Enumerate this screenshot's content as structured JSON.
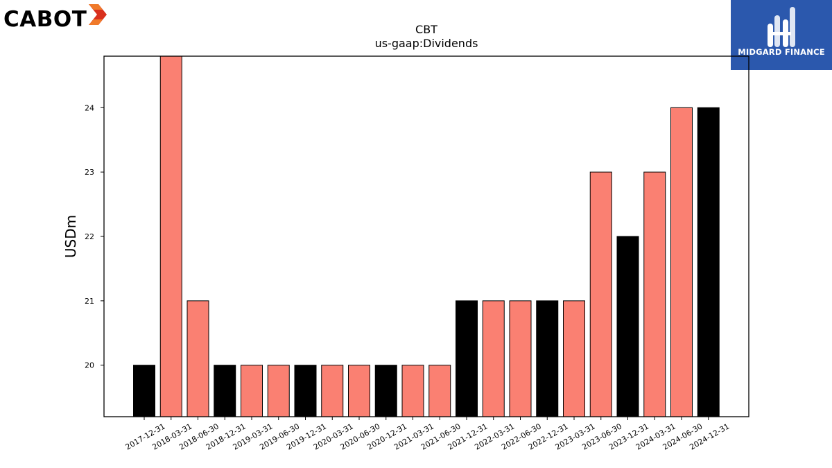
{
  "brand": {
    "name": "CABOT",
    "icon": "cabot-mark-icon",
    "colors": {
      "mark_dark": "#d9301e",
      "mark_light": "#f07a2a"
    }
  },
  "partner": {
    "name": "MIDGARD FINANCE",
    "icon": "midgard-mark-icon",
    "colors": {
      "background": "#2b58ad",
      "text": "#ffffff"
    }
  },
  "chart_data": {
    "type": "bar",
    "title": "CBT",
    "subtitle": "us-gaap:Dividends",
    "xlabel": "",
    "ylabel": "USDm",
    "ylim": [
      19.2,
      24.8
    ],
    "yticks": [
      20,
      21,
      22,
      23,
      24
    ],
    "grid": false,
    "legend": "none",
    "categories": [
      "2017-12-31",
      "2018-03-31",
      "2018-06-30",
      "2018-12-31",
      "2019-03-31",
      "2019-06-30",
      "2019-12-31",
      "2020-03-31",
      "2020-06-30",
      "2020-12-31",
      "2021-03-31",
      "2021-06-30",
      "2021-12-31",
      "2022-03-31",
      "2022-06-30",
      "2022-12-31",
      "2023-03-31",
      "2023-06-30",
      "2023-12-31",
      "2024-03-31",
      "2024-06-30",
      "2024-12-31"
    ],
    "values": [
      20,
      25,
      21,
      20,
      20,
      20,
      20,
      20,
      20,
      20,
      20,
      20,
      21,
      21,
      21,
      21,
      21,
      23,
      22,
      23,
      24,
      24
    ],
    "colors": [
      "#000000",
      "#fa8072",
      "#fa8072",
      "#000000",
      "#fa8072",
      "#fa8072",
      "#000000",
      "#fa8072",
      "#fa8072",
      "#000000",
      "#fa8072",
      "#fa8072",
      "#000000",
      "#fa8072",
      "#fa8072",
      "#000000",
      "#fa8072",
      "#fa8072",
      "#000000",
      "#fa8072",
      "#fa8072",
      "#000000"
    ]
  }
}
